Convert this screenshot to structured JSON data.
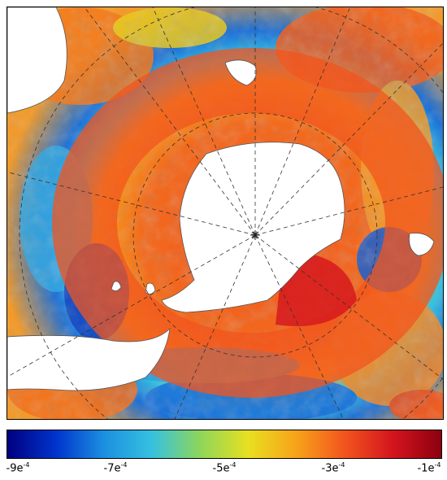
{
  "map": {
    "projection": "south-polar-stereographic",
    "colormap": [
      "#00007f",
      "#0033cc",
      "#1c8fe0",
      "#36c1e0",
      "#8ed65a",
      "#e8e020",
      "#f7a21a",
      "#f2541e",
      "#d4141e",
      "#8c0010"
    ],
    "land_color": "#ffffff",
    "graticule": "dashed"
  },
  "colorbar": {
    "ticks": [
      {
        "value": -0.0009,
        "label": "-9e",
        "exp": "-4"
      },
      {
        "value": -0.0007,
        "label": "-7e",
        "exp": "-4"
      },
      {
        "value": -0.0005,
        "label": "-5e",
        "exp": "-4"
      },
      {
        "value": -0.0003,
        "label": "-3e",
        "exp": "-4"
      },
      {
        "value": -0.0001,
        "label": "-1e",
        "exp": "-4"
      }
    ],
    "min": -0.0009,
    "max": -0.0001
  }
}
